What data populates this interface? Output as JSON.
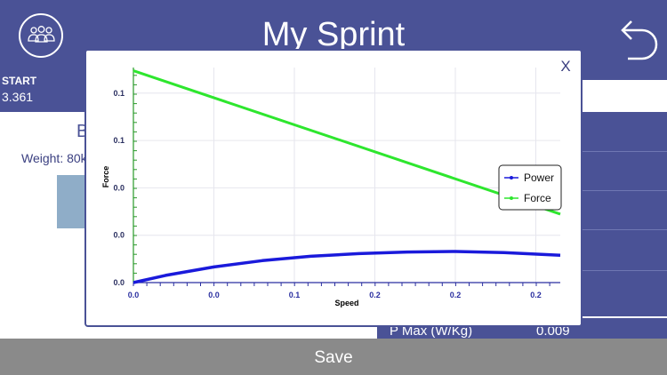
{
  "header": {
    "title": "My Sprint",
    "team_icon": "team-icon",
    "back_icon": "undo-arrow-icon"
  },
  "stats": {
    "start_label": "START",
    "start_value": "3.361"
  },
  "background": {
    "letter": "B",
    "weight_label": "Weight: 80k",
    "pmax_label": "P Max (W/Kg)",
    "pmax_value": "0.009"
  },
  "modal": {
    "close_label": "X"
  },
  "footer": {
    "save_label": "Save"
  },
  "colors": {
    "header": "#4a5296",
    "power": "#1a1adb",
    "force": "#2ee62e",
    "save_bar": "#8a8a8a"
  },
  "chart_data": {
    "type": "line",
    "xlabel": "Speed",
    "ylabel": "Force",
    "x_tick_labels": [
      "0.0",
      "0.0",
      "0.1",
      "0.2",
      "0.2",
      "0.2"
    ],
    "y_tick_labels": [
      "0.0",
      "0.0",
      "0.0",
      "0.1",
      "0.1"
    ],
    "xlim": [
      0,
      0.265
    ],
    "ylim": [
      0,
      0.135
    ],
    "grid": true,
    "legend": "right",
    "series": [
      {
        "name": "Power",
        "color": "#1a1adb",
        "x": [
          0,
          0.02,
          0.05,
          0.08,
          0.11,
          0.14,
          0.17,
          0.2,
          0.23,
          0.265
        ],
        "y": [
          0,
          0.0045,
          0.0098,
          0.0138,
          0.0165,
          0.0182,
          0.0192,
          0.0195,
          0.0188,
          0.0172
        ]
      },
      {
        "name": "Force",
        "color": "#2ee62e",
        "x": [
          0,
          0.265
        ],
        "y": [
          0.133,
          0.043
        ]
      }
    ]
  }
}
